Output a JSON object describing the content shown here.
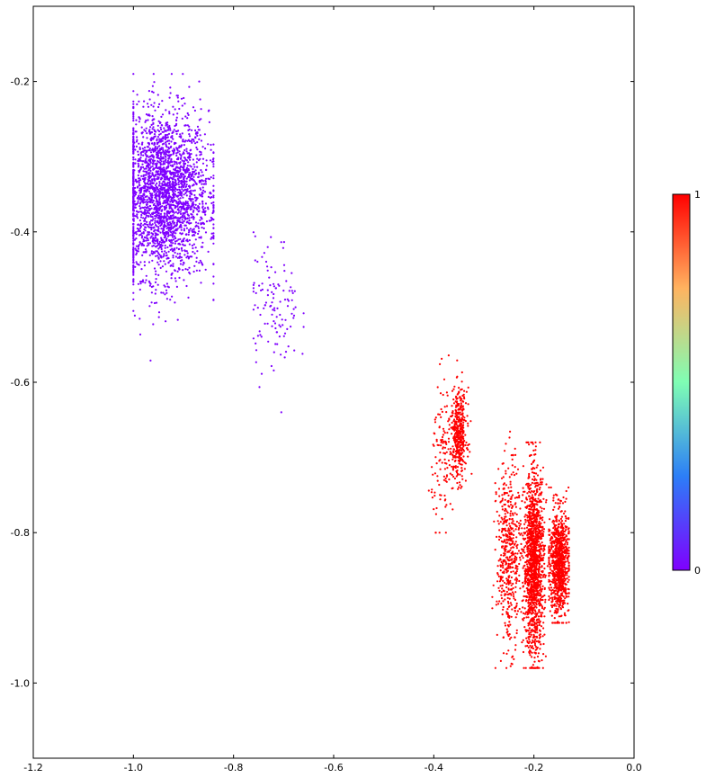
{
  "chart_data": {
    "type": "scatter",
    "title": "",
    "xlabel": "",
    "ylabel": "",
    "xlim": [
      -1.2,
      0.0
    ],
    "ylim": [
      -1.1,
      -0.1
    ],
    "x_ticks": [
      "-1.2",
      "-1.0",
      "-0.8",
      "-0.6",
      "-0.4",
      "-0.2",
      "0.0"
    ],
    "y_ticks": [
      "-0.2",
      "-0.4",
      "-0.6",
      "-0.8",
      "-1.0"
    ],
    "x_tick_values": [
      -1.2,
      -1.0,
      -0.8,
      -0.6,
      -0.4,
      -0.2,
      0.0
    ],
    "y_tick_values": [
      -0.2,
      -0.4,
      -0.6,
      -0.8,
      -1.0
    ],
    "grid": false,
    "colormap": "rainbow",
    "colorbar": {
      "min_label": "0",
      "max_label": "1",
      "min": 0,
      "max": 1
    },
    "point_color_class_0": "#7f00ff",
    "point_color_class_1": "#ff0000",
    "clusters": [
      {
        "class": 0,
        "x_center": -0.94,
        "y_center": -0.35,
        "x_spread": 0.045,
        "y_spread": 0.055,
        "points": 2600,
        "x_range": [
          -1.0,
          -0.84
        ],
        "y_range": [
          -0.58,
          -0.19
        ]
      },
      {
        "class": 0,
        "x_center": -0.72,
        "y_center": -0.5,
        "x_spread": 0.025,
        "y_spread": 0.045,
        "points": 120,
        "x_range": [
          -0.76,
          -0.66
        ],
        "y_range": [
          -0.64,
          -0.4
        ]
      },
      {
        "class": 1,
        "x_center": -0.38,
        "y_center": -0.7,
        "x_spread": 0.012,
        "y_spread": 0.05,
        "points": 120,
        "x_range": [
          -0.41,
          -0.36
        ],
        "y_range": [
          -0.8,
          -0.56
        ]
      },
      {
        "class": 1,
        "x_center": -0.35,
        "y_center": -0.67,
        "x_spread": 0.008,
        "y_spread": 0.03,
        "points": 400,
        "x_range": [
          -0.37,
          -0.32
        ],
        "y_range": [
          -0.75,
          -0.57
        ]
      },
      {
        "class": 1,
        "x_center": -0.25,
        "y_center": -0.83,
        "x_spread": 0.012,
        "y_spread": 0.06,
        "points": 500,
        "x_range": [
          -0.29,
          -0.22
        ],
        "y_range": [
          -0.98,
          -0.63
        ]
      },
      {
        "class": 1,
        "x_center": -0.2,
        "y_center": -0.84,
        "x_spread": 0.01,
        "y_spread": 0.06,
        "points": 1400,
        "x_range": [
          -0.23,
          -0.17
        ],
        "y_range": [
          -0.98,
          -0.68
        ]
      },
      {
        "class": 1,
        "x_center": -0.15,
        "y_center": -0.84,
        "x_spread": 0.01,
        "y_spread": 0.035,
        "points": 900,
        "x_range": [
          -0.17,
          -0.13
        ],
        "y_range": [
          -0.92,
          -0.74
        ]
      }
    ]
  }
}
